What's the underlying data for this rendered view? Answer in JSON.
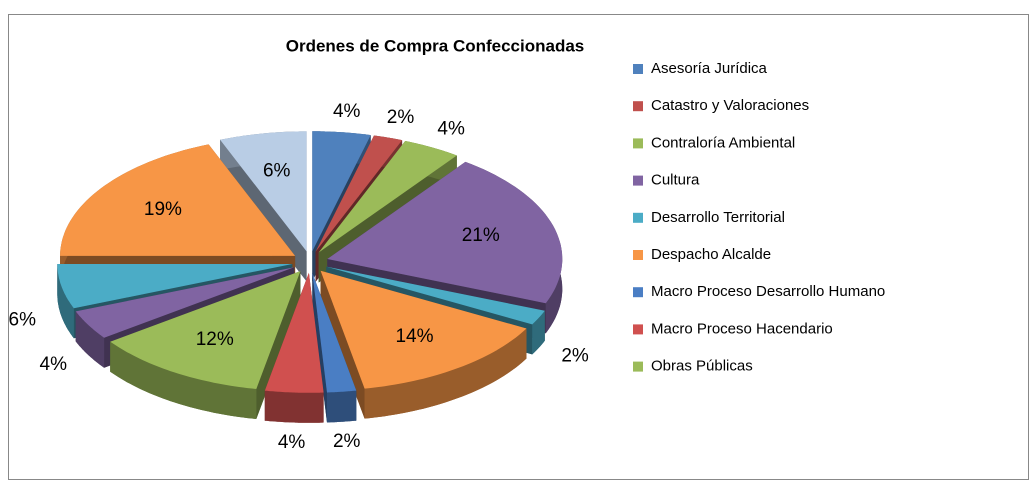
{
  "chart_data": {
    "type": "pie",
    "title": "Ordenes de Compra Confeccionadas",
    "categories": [
      "Asesoría Jurídica",
      "Catastro y Valoraciones",
      "Contraloría Ambiental",
      "Cultura",
      "Desarrollo Territorial",
      "Despacho Alcalde",
      "Macro Proceso Desarrollo Humano",
      "Macro Proceso Hacendario",
      "Obras Públicas",
      null,
      null,
      null,
      null
    ],
    "values": [
      4,
      2,
      4,
      21,
      2,
      14,
      2,
      4,
      12,
      4,
      6,
      19,
      6
    ],
    "value_labels": [
      "4%",
      "2%",
      "4%",
      "21%",
      "2%",
      "14%",
      "2%",
      "4%",
      "12%",
      "4%",
      "6%",
      "19%",
      "6%"
    ],
    "colors": [
      "#4f81bd",
      "#c0504d",
      "#9bbb59",
      "#8064a2",
      "#4bacc6",
      "#f79646",
      "#4a7ec4",
      "#d0504f",
      "#9bbb59",
      "#8064a2",
      "#4bacc6",
      "#f79646",
      "#b9cde5"
    ]
  }
}
